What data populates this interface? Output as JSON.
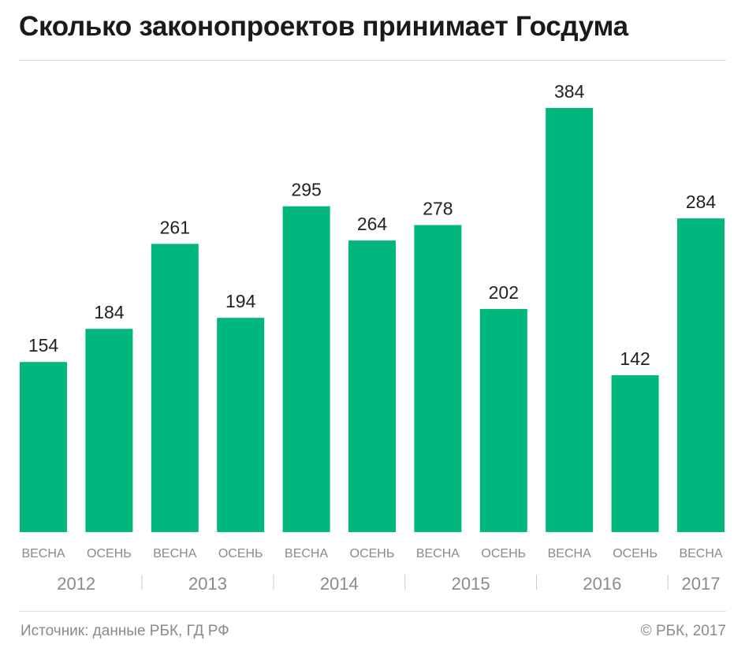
{
  "title": "Сколько законопроектов принимает Госдума",
  "source": "Источник: данные РБК, ГД РФ",
  "copyright": "© РБК, 2017",
  "colors": {
    "bar": "#00b77d",
    "value_label": "#222222",
    "season_label": "#8a8a8a",
    "year_label": "#8a8a8a",
    "separator": "#cccccc"
  },
  "chart_data": {
    "type": "bar",
    "categories": [
      "ВЕСНА",
      "ОСЕНЬ",
      "ВЕСНА",
      "ОСЕНЬ",
      "ВЕСНА",
      "ОСЕНЬ",
      "ВЕСНА",
      "ОСЕНЬ",
      "ВЕСНА",
      "ОСЕНЬ",
      "ВЕСНА"
    ],
    "values": [
      154,
      184,
      261,
      194,
      295,
      264,
      278,
      202,
      384,
      142,
      284
    ],
    "groups": [
      {
        "label": "2012",
        "count": 2
      },
      {
        "label": "2013",
        "count": 2
      },
      {
        "label": "2014",
        "count": 2
      },
      {
        "label": "2015",
        "count": 2
      },
      {
        "label": "2016",
        "count": 2
      },
      {
        "label": "2017",
        "count": 1
      }
    ],
    "ylim": [
      0,
      384
    ],
    "grid": false,
    "legend": "none",
    "xlabel": "",
    "ylabel": ""
  }
}
